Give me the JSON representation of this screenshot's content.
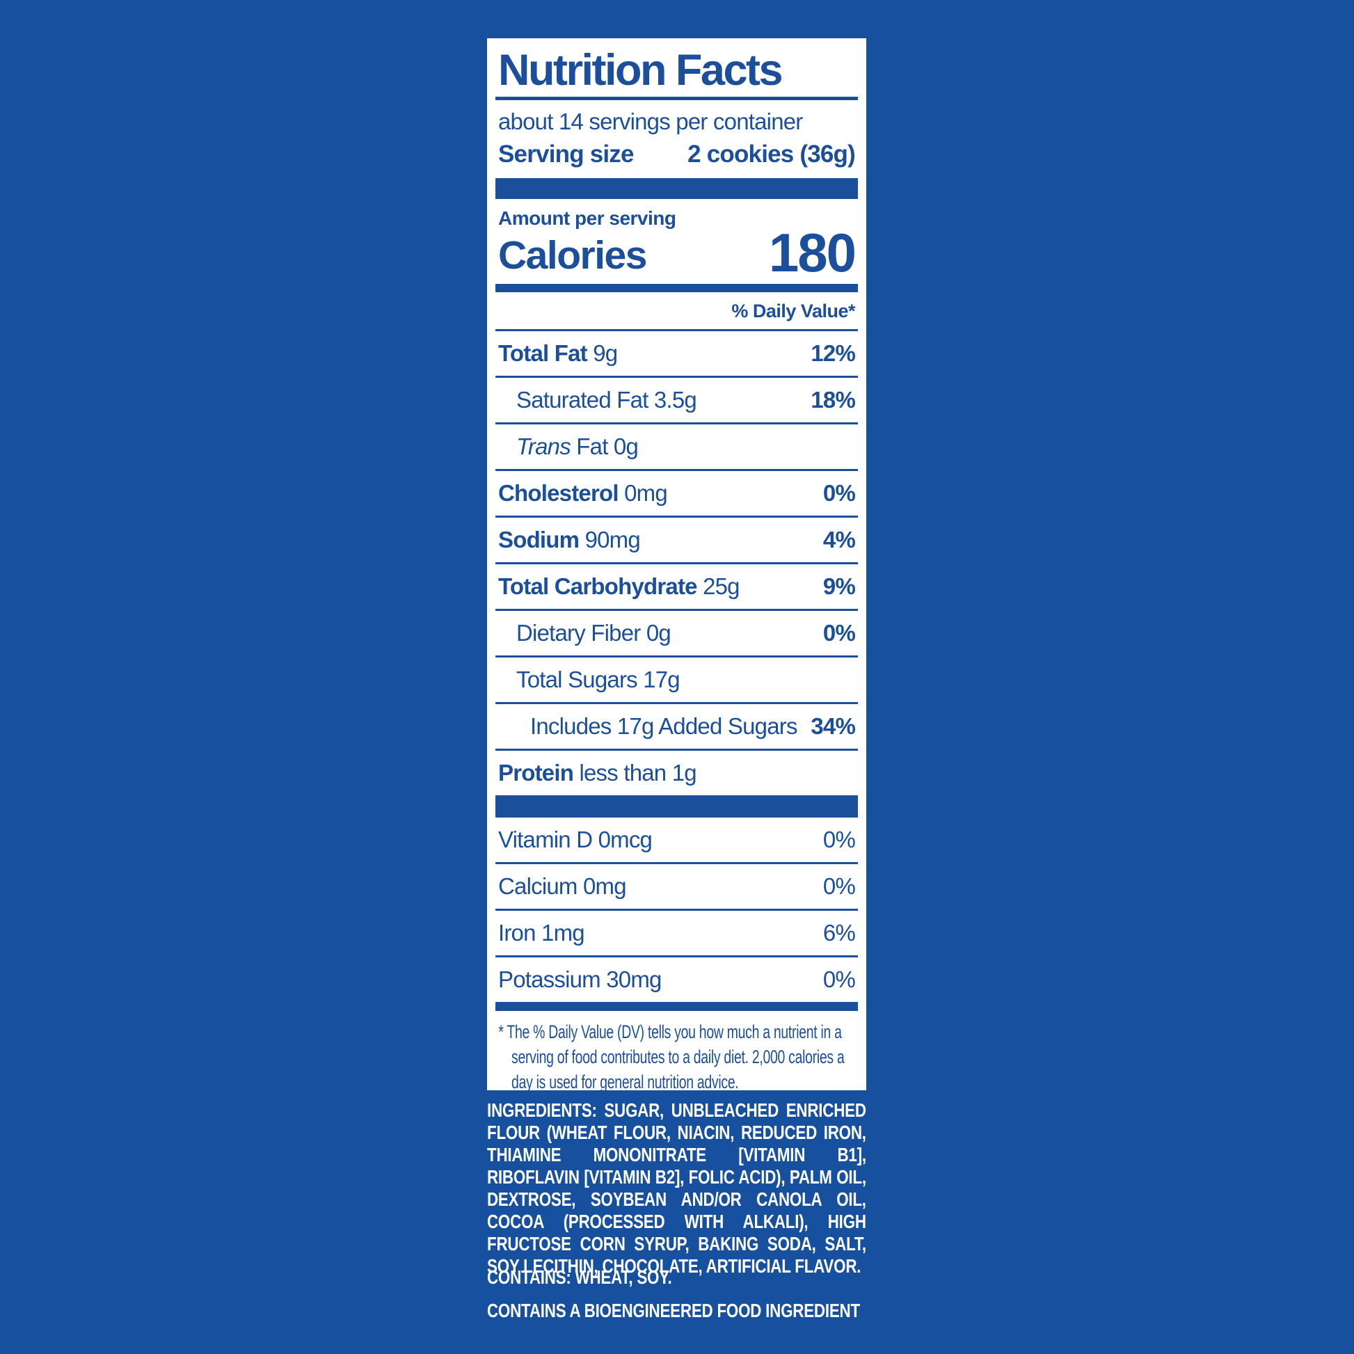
{
  "colors": {
    "background": "#17509e",
    "panel": "#ffffff",
    "blue": "#1b4f9c",
    "white_text": "#ffffff"
  },
  "label": {
    "title": "Nutrition Facts",
    "servings_per_container": "about 14 servings per container",
    "serving_size_label": "Serving size",
    "serving_size_value": "2 cookies (36g)",
    "amount_per_serving": "Amount per serving",
    "calories_label": "Calories",
    "calories_value": "180",
    "daily_value_header": "% Daily Value*",
    "rows": [
      {
        "name_bold": "Total Fat",
        "name_rest": "9g",
        "dv": "12%",
        "indent": 0,
        "dv_bold": true
      },
      {
        "name_rest": "Saturated Fat 3.5g",
        "dv": "18%",
        "indent": 1,
        "dv_bold": true
      },
      {
        "name_italic": "Trans",
        "name_rest": "Fat 0g",
        "dv": "",
        "indent": 1
      },
      {
        "name_bold": "Cholesterol",
        "name_rest": "0mg",
        "dv": "0%",
        "indent": 0,
        "dv_bold": true
      },
      {
        "name_bold": "Sodium",
        "name_rest": "90mg",
        "dv": "4%",
        "indent": 0,
        "dv_bold": true
      },
      {
        "name_bold": "Total Carbohydrate",
        "name_rest": "25g",
        "dv": "9%",
        "indent": 0,
        "dv_bold": true
      },
      {
        "name_rest": "Dietary Fiber 0g",
        "dv": "0%",
        "indent": 1,
        "dv_bold": true
      },
      {
        "name_rest": "Total Sugars 17g",
        "dv": "",
        "indent": 1
      },
      {
        "name_rest": "Includes 17g Added Sugars",
        "dv": "34%",
        "indent": 2,
        "dv_bold": true,
        "sep_indent": true
      },
      {
        "name_bold": "Protein",
        "name_rest": "less than 1g",
        "dv": "",
        "indent": 0
      }
    ],
    "vitamins": [
      {
        "name_rest": "Vitamin D 0mcg",
        "dv": "0%"
      },
      {
        "name_rest": "Calcium 0mg",
        "dv": "0%"
      },
      {
        "name_rest": "Iron 1mg",
        "dv": "6%"
      },
      {
        "name_rest": "Potassium 30mg",
        "dv": "0%"
      }
    ],
    "footnote": "* The % Daily Value (DV) tells you how much a nutrient in a serving of food contributes to a daily diet. 2,000 calories a day is used for general nutrition advice."
  },
  "ingredients_text": "INGREDIENTS: SUGAR, UNBLEACHED ENRICHED FLOUR (WHEAT FLOUR, NIACIN, REDUCED IRON, THIAMINE MONONITRATE [VITAMIN B1], RIBOFLAVIN [VITAMIN B2], FOLIC ACID), PALM OIL, DEXTROSE, SOYBEAN AND/OR CANOLA OIL, COCOA (PROCESSED WITH ALKALI), HIGH FRUCTOSE CORN SYRUP, BAKING SODA, SALT, SOY LECITHIN, CHOCOLATE, ARTIFICIAL FLAVOR.",
  "contains_text": "CONTAINS: WHEAT, SOY.",
  "bioengineered_text": "CONTAINS A BIOENGINEERED FOOD INGREDIENT"
}
